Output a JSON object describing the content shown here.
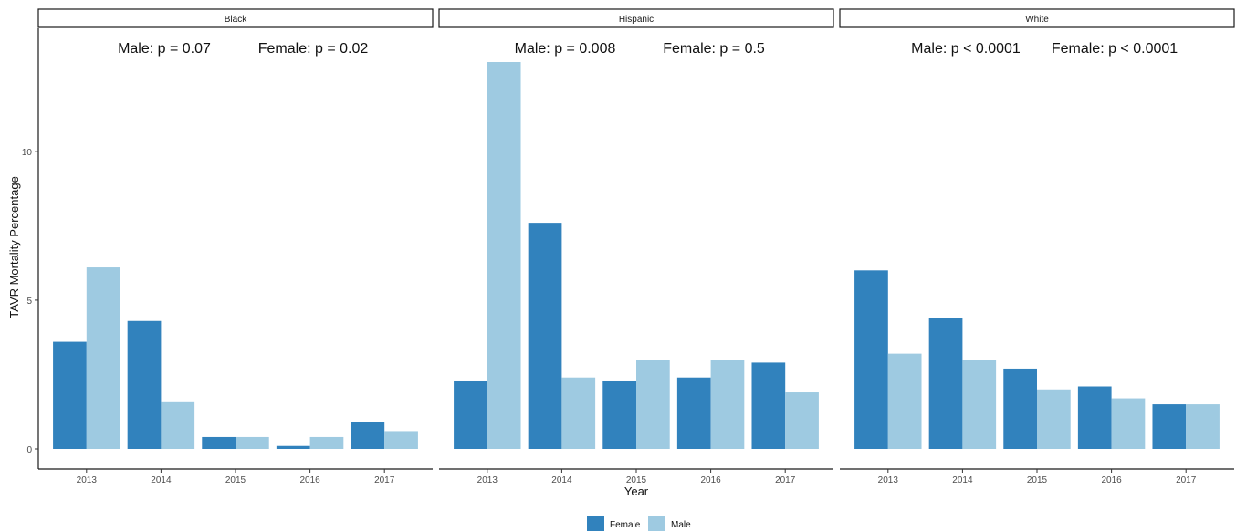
{
  "chart_data": {
    "type": "bar",
    "ylabel": "TAVR Mortality Percentage",
    "xlabel": "Year",
    "ylim": [
      0,
      13.6
    ],
    "yticks": [
      0,
      5,
      10
    ],
    "categories": [
      "2013",
      "2014",
      "2015",
      "2016",
      "2017"
    ],
    "colors": {
      "Female": "#3182bd",
      "Male": "#9ecae1"
    },
    "legend": {
      "position": "bottom",
      "entries": [
        "Female",
        "Male"
      ]
    },
    "grid": false,
    "panels": [
      {
        "strip": "Black",
        "male_p": "Male: p = 0.07",
        "female_p": "Female: p = 0.02",
        "series": [
          {
            "name": "Female",
            "values": [
              3.6,
              4.3,
              0.4,
              0.1,
              0.9
            ]
          },
          {
            "name": "Male",
            "values": [
              6.1,
              1.6,
              0.4,
              0.4,
              0.6
            ]
          }
        ]
      },
      {
        "strip": "Hispanic",
        "male_p": "Male: p = 0.008",
        "female_p": "Female: p = 0.5",
        "series": [
          {
            "name": "Female",
            "values": [
              2.3,
              7.6,
              2.3,
              2.4,
              2.9
            ]
          },
          {
            "name": "Male",
            "values": [
              13.0,
              2.4,
              3.0,
              3.0,
              1.9
            ]
          }
        ]
      },
      {
        "strip": "White",
        "male_p": "Male: p < 0.0001",
        "female_p": "Female: p < 0.0001",
        "series": [
          {
            "name": "Female",
            "values": [
              6.0,
              4.4,
              2.7,
              2.1,
              1.5
            ]
          },
          {
            "name": "Male",
            "values": [
              3.2,
              3.0,
              2.0,
              1.7,
              1.5
            ]
          }
        ]
      }
    ]
  }
}
